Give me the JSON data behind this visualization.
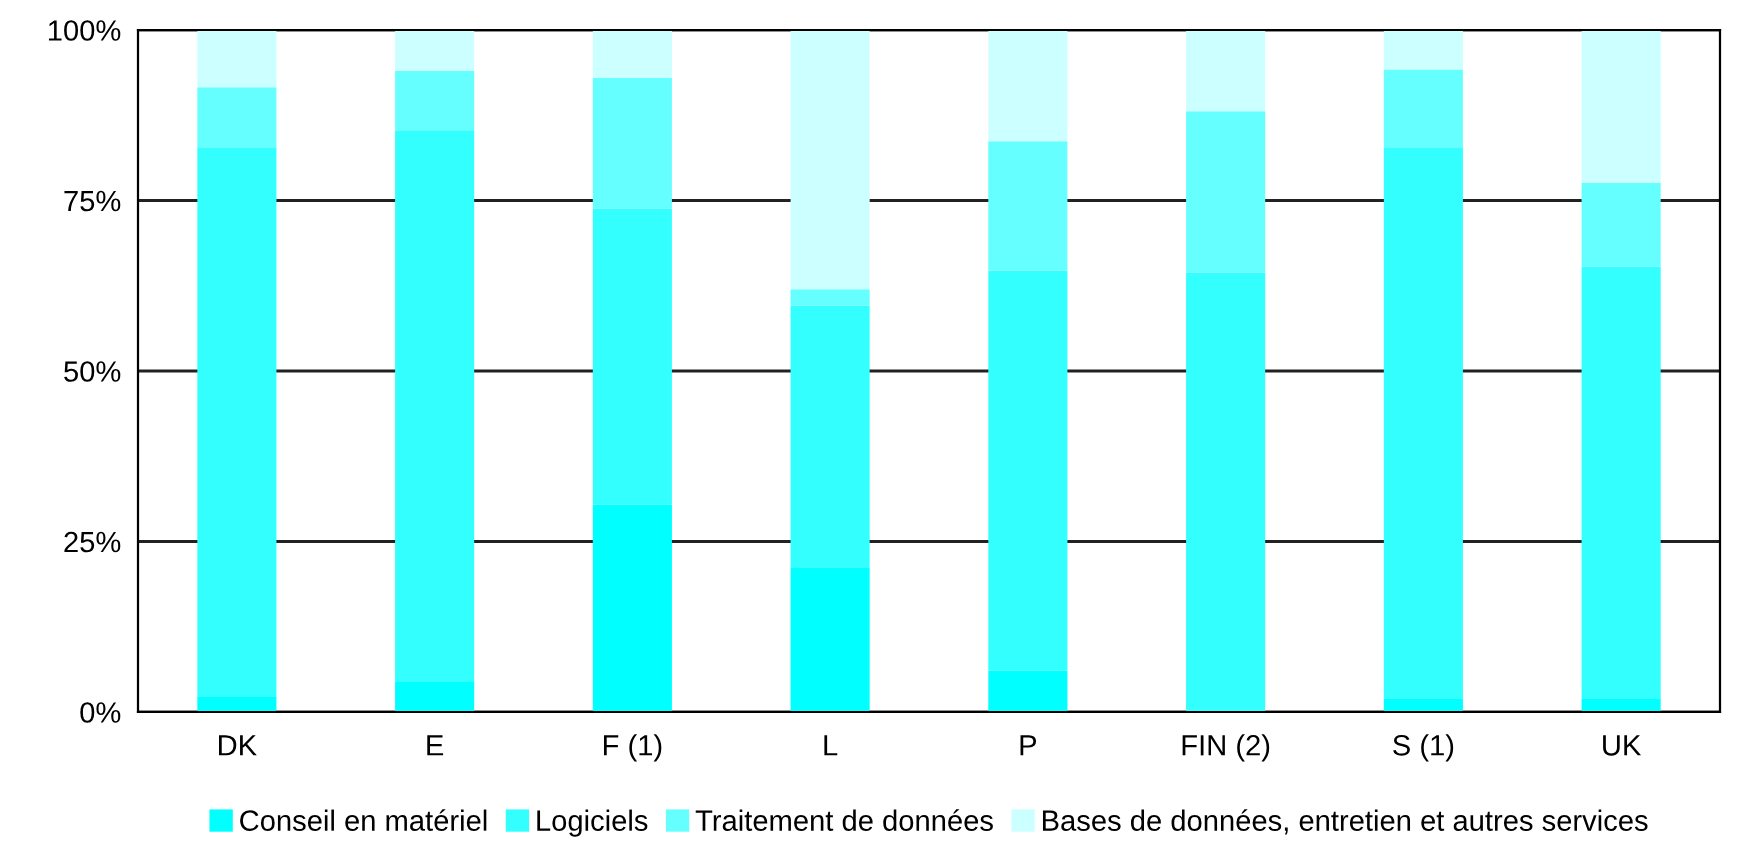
{
  "chart_data": {
    "type": "bar",
    "stacked": true,
    "categories": [
      "DK",
      "E",
      "F (1)",
      "L",
      "P",
      "FIN (2)",
      "S (1)",
      "UK"
    ],
    "series": [
      {
        "name": "Conseil en matériel",
        "color": "#00ffff",
        "values": [
          2.3,
          4.4,
          30.4,
          21.1,
          6.1,
          0,
          2.0,
          2.0
        ]
      },
      {
        "name": "Logiciels",
        "color": "#33ffff",
        "values": [
          80.5,
          80.8,
          43.4,
          38.5,
          58.6,
          64.4,
          80.8,
          63.3
        ]
      },
      {
        "name": "Traitement de données",
        "color": "#66ffff",
        "values": [
          8.8,
          8.8,
          19.2,
          2.4,
          19.0,
          23.7,
          11.4,
          12.3
        ]
      },
      {
        "name": "Bases de données, entretien et autres services",
        "color": "#ccffff",
        "values": [
          8.4,
          6.0,
          7.0,
          38.0,
          16.3,
          11.9,
          5.8,
          22.4
        ]
      }
    ],
    "ylim": [
      0,
      100
    ],
    "yticks": [
      {
        "value": 0,
        "label": "0%"
      },
      {
        "value": 25,
        "label": "25%"
      },
      {
        "value": 50,
        "label": "50%"
      },
      {
        "value": 75,
        "label": "75%"
      },
      {
        "value": 100,
        "label": "100%"
      }
    ],
    "grid": "y",
    "legend": "bottom"
  }
}
